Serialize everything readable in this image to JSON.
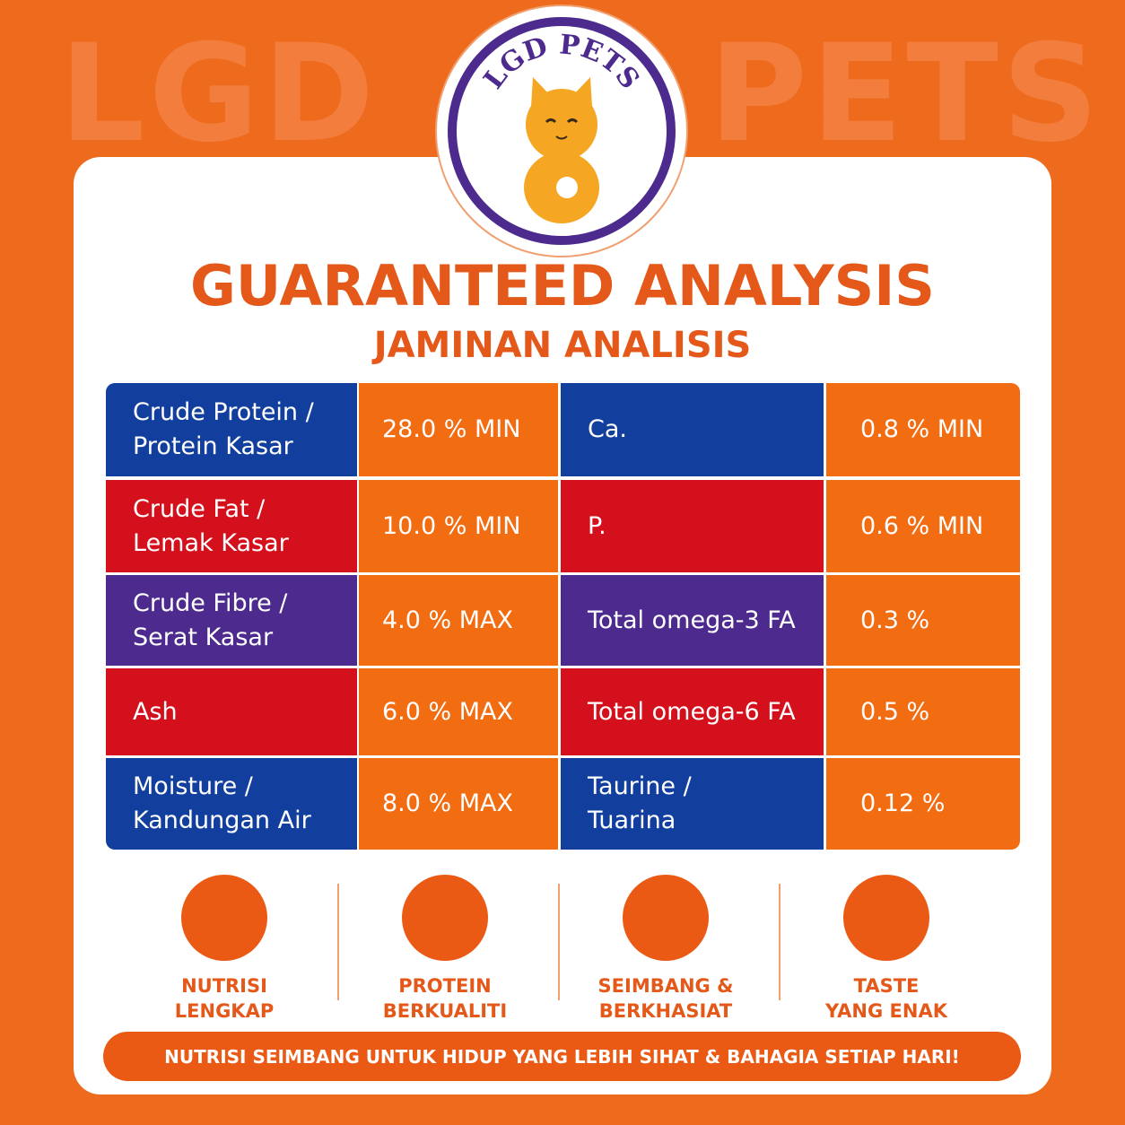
{
  "watermark": {
    "left": "LGD",
    "right": "PETS"
  },
  "logo": {
    "text": "LGD PETS"
  },
  "header": {
    "title": "GUARANTEED ANALYSIS",
    "subtitle": "JAMINAN ANALISIS"
  },
  "table": {
    "rows": [
      {
        "color": "#123f9e",
        "left_label": [
          "Crude Protein /",
          "Protein Kasar"
        ],
        "left_value": "28.0 % MIN",
        "right_label": [
          "Ca."
        ],
        "right_value": "0.8 % MIN"
      },
      {
        "color": "#d3101c",
        "left_label": [
          "Crude Fat /",
          "Lemak Kasar"
        ],
        "left_value": "10.0 % MIN",
        "right_label": [
          "P."
        ],
        "right_value": "0.6 % MIN"
      },
      {
        "color": "#4c2a8e",
        "left_label": [
          "Crude Fibre /",
          "Serat Kasar"
        ],
        "left_value": "4.0 % MAX",
        "right_label": [
          "Total omega-3 FA"
        ],
        "right_value": "0.3 %"
      },
      {
        "color": "#d3101c",
        "left_label": [
          "Ash"
        ],
        "left_value": "6.0 % MAX",
        "right_label": [
          "Total omega-6 FA"
        ],
        "right_value": "0.5 %"
      },
      {
        "color": "#123f9e",
        "left_label": [
          "Moisture /",
          "Kandungan Air"
        ],
        "left_value": "8.0 % MAX",
        "right_label": [
          "Taurine /",
          "Tuarina"
        ],
        "right_value": "0.12 %"
      }
    ]
  },
  "features": [
    {
      "lines": [
        "NUTRISI",
        "LENGKAP"
      ]
    },
    {
      "lines": [
        "PROTEIN",
        "BERKUALITI"
      ]
    },
    {
      "lines": [
        "SEIMBANG &",
        "BERKHASIAT"
      ]
    },
    {
      "lines": [
        "TASTE",
        "YANG ENAK"
      ]
    }
  ],
  "banner": {
    "text": "NUTRISI SEIMBANG UNTUK HIDUP YANG LEBIH SIHAT & BAHAGIA SETIAP HARI!"
  }
}
